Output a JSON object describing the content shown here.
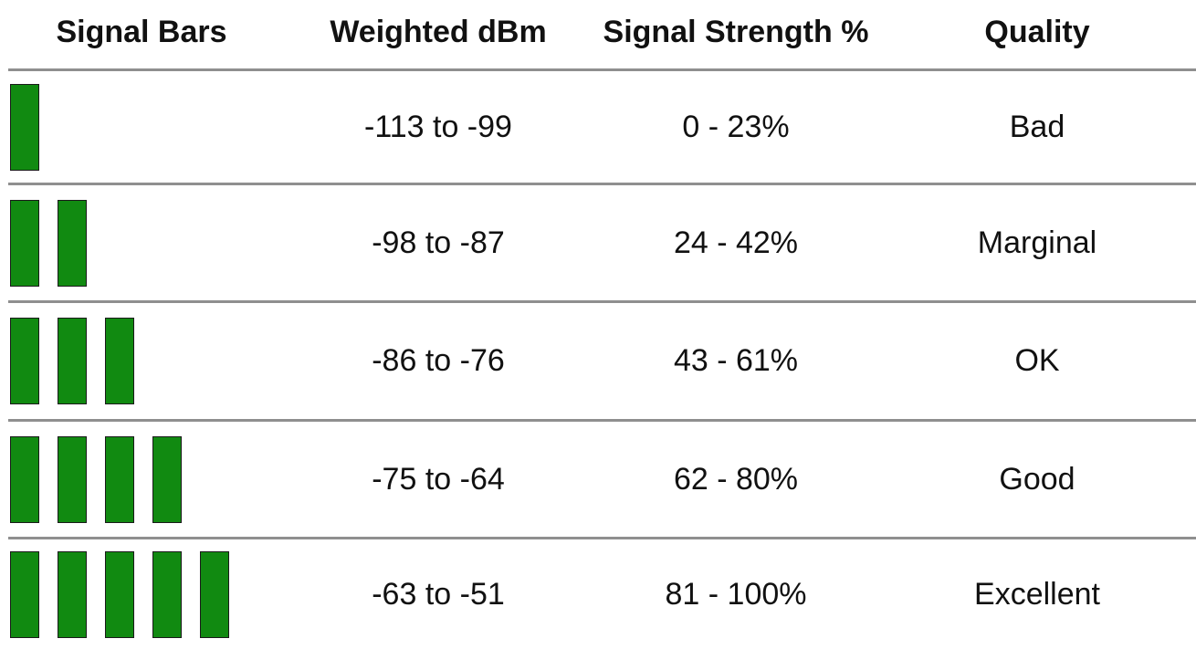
{
  "headers": {
    "bars": "Signal Bars",
    "dbm": "Weighted dBm",
    "strength": "Signal Strength %",
    "quality": "Quality"
  },
  "bar_color": "#118a11",
  "max_bars": 5,
  "rows": [
    {
      "bars": 1,
      "dbm": "-113 to -99",
      "strength": "0 - 23%",
      "quality": "Bad"
    },
    {
      "bars": 2,
      "dbm": "-98 to -87",
      "strength": "24 - 42%",
      "quality": "Marginal"
    },
    {
      "bars": 3,
      "dbm": "-86 to -76",
      "strength": "43 - 61%",
      "quality": "OK"
    },
    {
      "bars": 4,
      "dbm": "-75 to -64",
      "strength": "62 - 80%",
      "quality": "Good"
    },
    {
      "bars": 5,
      "dbm": "-63 to -51",
      "strength": "81 - 100%",
      "quality": "Excellent"
    }
  ]
}
